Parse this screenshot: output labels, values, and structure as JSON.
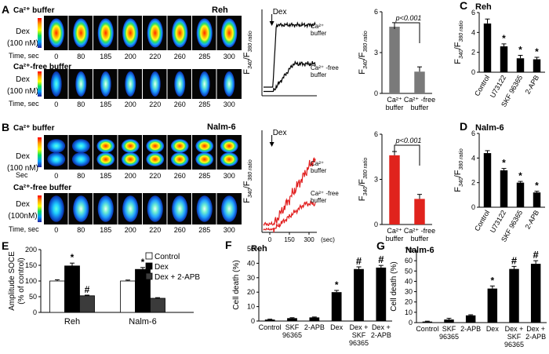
{
  "panels": {
    "A": {
      "letter": "A",
      "cell_line": "Reh",
      "row1_label": "Ca²⁺ buffer",
      "row2_label": "Ca²⁺-free buffer",
      "dex_line1": "Dex",
      "dex_line2": "(100 nM)",
      "time_label": "Time, sec",
      "times": [
        "0",
        "80",
        "185",
        "200",
        "220",
        "260",
        "285",
        "300"
      ]
    },
    "B": {
      "letter": "B",
      "cell_line": "Nalm-6",
      "row1_label": "Ca²⁺ buffer",
      "row2_label": "Ca²⁺-free buffer",
      "dex_line1": "Dex",
      "dex_line2a": "(100 nM)",
      "dex_line2b": "(100nM)",
      "time_label_1": "Sec",
      "time_label_2": "Time, sec",
      "times": [
        "0",
        "80",
        "185",
        "200",
        "220",
        "260",
        "285",
        "300"
      ]
    }
  },
  "chart_data": [
    {
      "id": "A-trace",
      "type": "line",
      "ylabel": "F340/F380 ratio",
      "annotation": "Dex",
      "series": [
        {
          "name": "Ca²⁺ buffer",
          "color": "#000000"
        },
        {
          "name": "Ca²⁺ -free buffer",
          "color": "#000000"
        }
      ]
    },
    {
      "id": "A-bar",
      "type": "bar",
      "ylabel": "F340/F380 ratio",
      "ylim": [
        0,
        6
      ],
      "yticks": [
        "0",
        "3",
        "6"
      ],
      "categories": [
        "Ca²⁺ buffer",
        "Ca²⁺ -free buffer"
      ],
      "values": [
        4.9,
        1.6
      ],
      "errors": [
        0.3,
        0.35
      ],
      "colors": [
        "#7a7a7a",
        "#7a7a7a"
      ],
      "annotation": "p<0.001"
    },
    {
      "id": "B-trace",
      "type": "line",
      "ylabel": "F340/F380 ratio",
      "annotation": "Dex",
      "xlabel": "(sec)",
      "xticks": [
        "0",
        "150",
        "300"
      ],
      "series": [
        {
          "name": "Ca²⁺ buffer",
          "color": "#e11f1f"
        },
        {
          "name": "Ca²⁺ -free buffer",
          "color": "#e11f1f"
        }
      ]
    },
    {
      "id": "B-bar",
      "type": "bar",
      "ylabel": "F340/F380 ratio",
      "ylim": [
        0,
        6
      ],
      "yticks": [
        "0",
        "3",
        "6"
      ],
      "categories": [
        "Ca²⁺ buffer",
        "Ca²⁺ -free buffer"
      ],
      "values": [
        4.6,
        1.7
      ],
      "errors": [
        0.25,
        0.3
      ],
      "colors": [
        "#e0231d",
        "#e0231d"
      ],
      "annotation": "p<0.001"
    },
    {
      "id": "C",
      "letter": "C",
      "title": "Reh",
      "type": "bar",
      "ylabel": "F340/F380 ratio",
      "ylim": [
        0,
        6
      ],
      "yticks": [
        "0",
        "2",
        "4",
        "6"
      ],
      "categories": [
        "Control",
        "U73122",
        "SKF 96365",
        "2-APB"
      ],
      "values": [
        4.9,
        2.6,
        1.4,
        1.3
      ],
      "errors": [
        0.45,
        0.25,
        0.3,
        0.2
      ],
      "stars": [
        "",
        "*",
        "*",
        "*"
      ]
    },
    {
      "id": "D",
      "letter": "D",
      "title": "Nalm-6",
      "type": "bar",
      "ylabel": "F340/F380 ratio",
      "ylim": [
        0,
        6
      ],
      "yticks": [
        "0",
        "2",
        "4",
        "6"
      ],
      "categories": [
        "Control",
        "U73122",
        "SKF 96365",
        "2-APB"
      ],
      "values": [
        4.4,
        3.0,
        2.0,
        1.2
      ],
      "errors": [
        0.2,
        0.15,
        0.1,
        0.1
      ],
      "stars": [
        "",
        "*",
        "*",
        "*"
      ]
    },
    {
      "id": "E",
      "letter": "E",
      "type": "bar",
      "ylabel": "Amplitude SOCE (% of control)",
      "ylim": [
        0,
        200
      ],
      "yticks": [
        "0",
        "50",
        "100",
        "150",
        "200"
      ],
      "categories": [
        "Reh",
        "Nalm-6"
      ],
      "series": [
        {
          "name": "Control",
          "values": [
            100,
            100
          ],
          "errors": [
            4,
            3
          ],
          "color": "#ffffff",
          "marks": [
            "",
            ""
          ]
        },
        {
          "name": "Dex",
          "values": [
            148,
            137
          ],
          "errors": [
            9,
            6
          ],
          "color": "#000000",
          "marks": [
            "*",
            "*"
          ]
        },
        {
          "name": "Dex + 2-APB",
          "values": [
            53,
            45
          ],
          "errors": [
            2,
            2
          ],
          "color": "#3b3b3b",
          "marks": [
            "#",
            ""
          ]
        }
      ]
    },
    {
      "id": "F",
      "letter": "F",
      "title": "Reh",
      "type": "bar",
      "ylabel": "Cell death (%)",
      "ylim": [
        0,
        50
      ],
      "yticks": [
        "0",
        "10",
        "20",
        "30",
        "40",
        "50"
      ],
      "categories": [
        "Control",
        "SKF 96365",
        "2-APB",
        "Dex",
        "Dex + SKF 96365",
        "Dex + 2-APB"
      ],
      "values": [
        1,
        2,
        2.5,
        20,
        36,
        37
      ],
      "errors": [
        0.3,
        0.3,
        0.3,
        1.2,
        1.5,
        1.5
      ],
      "marks": [
        "",
        "",
        "",
        "*",
        "#",
        "#"
      ]
    },
    {
      "id": "G",
      "letter": "G",
      "title": "Nalm-6",
      "type": "bar",
      "ylabel": "Cell death (%)",
      "ylim": [
        0,
        70
      ],
      "yticks": [
        "0",
        "10",
        "20",
        "30",
        "40",
        "50",
        "60",
        "70"
      ],
      "categories": [
        "Control",
        "SKF 96365",
        "2-APB",
        "Dex",
        "Dex + SKF 96365",
        "Dex + 2-APB"
      ],
      "values": [
        1,
        3,
        7,
        33,
        52,
        57
      ],
      "errors": [
        0.4,
        1.2,
        0.6,
        2.5,
        2.5,
        3
      ],
      "marks": [
        "",
        "",
        "",
        "*",
        "#",
        "#"
      ]
    }
  ]
}
